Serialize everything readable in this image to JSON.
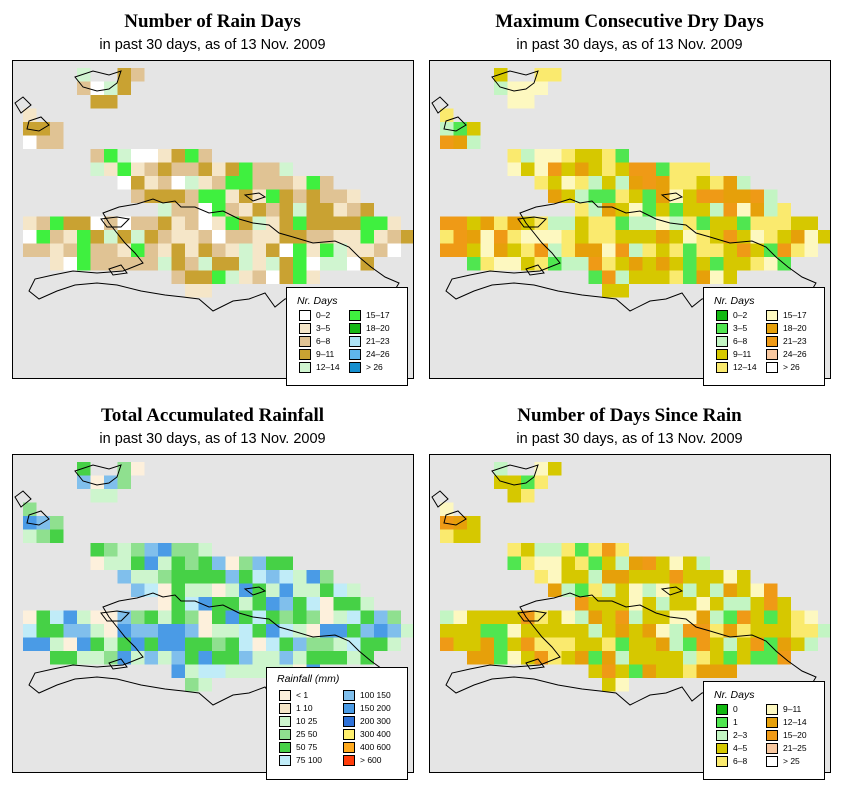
{
  "panels": [
    {
      "title": "Number of Rain Days",
      "subtitle": "in past 30 days, as of  13 Nov. 2009",
      "legend": {
        "title": "Nr. Days",
        "items": [
          {
            "label": "0–2",
            "color": "#ffffff"
          },
          {
            "label": "3–5",
            "color": "#f5e6c8"
          },
          {
            "label": "6–8",
            "color": "#e0c394"
          },
          {
            "label": "9–11",
            "color": "#c9a232"
          },
          {
            "label": "12–14",
            "color": "#d0f5d0"
          },
          {
            "label": "15–17",
            "color": "#3ff03f"
          },
          {
            "label": "18–20",
            "color": "#16b816"
          },
          {
            "label": "21–23",
            "color": "#aee3f5"
          },
          {
            "label": "24–26",
            "color": "#5fb6ec"
          },
          {
            "label": "> 26",
            "color": "#158fcf"
          }
        ]
      }
    },
    {
      "title": "Maximum Consecutive Dry Days",
      "subtitle": "in past 30 days, as of  13 Nov. 2009",
      "legend": {
        "title": "Nr. Days",
        "items": [
          {
            "label": "0–2",
            "color": "#12b812"
          },
          {
            "label": "3–5",
            "color": "#50e650"
          },
          {
            "label": "6–8",
            "color": "#c3f5c3"
          },
          {
            "label": "9–11",
            "color": "#d6c800"
          },
          {
            "label": "12–14",
            "color": "#faea6e"
          },
          {
            "label": "15–17",
            "color": "#fdf8c0"
          },
          {
            "label": "18–20",
            "color": "#e6a00a"
          },
          {
            "label": "21–23",
            "color": "#ef9a16"
          },
          {
            "label": "24–26",
            "color": "#f8c8a0"
          },
          {
            "label": "> 26",
            "color": "#ffffff"
          }
        ]
      }
    },
    {
      "title": "Total Accumulated Rainfall",
      "subtitle": "in past 30 days, as of  13 Nov. 2009",
      "legend": {
        "title": "Rainfall (mm)",
        "items": [
          {
            "label": "< 1",
            "color": "#fdf0dc"
          },
          {
            "label": "1    10",
            "color": "#f5e6c8"
          },
          {
            "label": "10    25",
            "color": "#cdf5cd"
          },
          {
            "label": "25    50",
            "color": "#8fe08f"
          },
          {
            "label": "50    75",
            "color": "#46d146"
          },
          {
            "label": "75  100",
            "color": "#c0ecf8"
          },
          {
            "label": "100  150",
            "color": "#80bfec"
          },
          {
            "label": "150  200",
            "color": "#4a9be6"
          },
          {
            "label": "200  300",
            "color": "#2f72d9"
          },
          {
            "label": "300  400",
            "color": "#fff06e"
          },
          {
            "label": "400  600",
            "color": "#ffaa1e"
          },
          {
            "label": "> 600",
            "color": "#ff3c0a"
          }
        ]
      }
    },
    {
      "title": "Number of Days Since Rain",
      "subtitle": "in past 30 days, as of  13 Nov. 2009",
      "legend": {
        "title": "Nr. Days",
        "items": [
          {
            "label": "0",
            "color": "#12b812"
          },
          {
            "label": "1",
            "color": "#50e650"
          },
          {
            "label": "2–3",
            "color": "#c3f5c3"
          },
          {
            "label": "4–5",
            "color": "#d6c800"
          },
          {
            "label": "6–8",
            "color": "#faea6e"
          },
          {
            "label": "9–11",
            "color": "#fdf8c0"
          },
          {
            "label": "12–14",
            "color": "#e6a00a"
          },
          {
            "label": "15–20",
            "color": "#ef9a16"
          },
          {
            "label": "21–25",
            "color": "#f8c8a0"
          },
          {
            "label": "> 25",
            "color": "#ffffff"
          }
        ]
      }
    }
  ],
  "colors": {
    "map_background": "#e5e5e5",
    "coastline": "#000000"
  }
}
